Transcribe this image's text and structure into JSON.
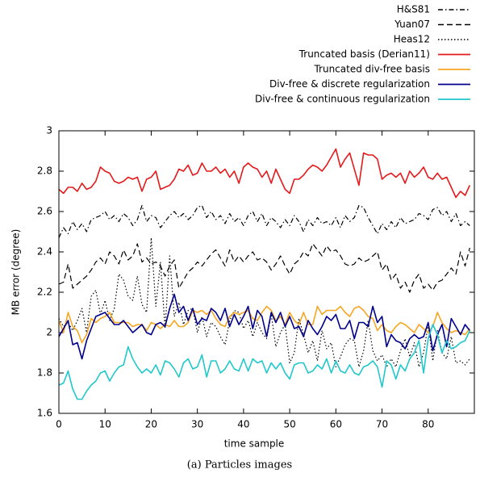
{
  "chart_data": {
    "type": "line",
    "xlabel": "time sample",
    "ylabel": "MB error (degree)",
    "caption": "(a) Particles images",
    "xlim": [
      0,
      90
    ],
    "ylim": [
      1.6,
      3
    ],
    "xticks": [
      0,
      10,
      20,
      30,
      40,
      50,
      60,
      70,
      80
    ],
    "yticks": [
      1.6,
      1.8,
      2,
      2.2,
      2.4,
      2.6,
      2.8,
      3
    ],
    "legend": "top-right",
    "x": [
      0,
      1,
      2,
      3,
      4,
      5,
      6,
      7,
      8,
      9,
      10,
      11,
      12,
      13,
      14,
      15,
      16,
      17,
      18,
      19,
      20,
      21,
      22,
      23,
      24,
      25,
      26,
      27,
      28,
      29,
      30,
      31,
      32,
      33,
      34,
      35,
      36,
      37,
      38,
      39,
      40,
      41,
      42,
      43,
      44,
      45,
      46,
      47,
      48,
      49,
      50,
      51,
      52,
      53,
      54,
      55,
      56,
      57,
      58,
      59,
      60,
      61,
      62,
      63,
      64,
      65,
      66,
      67,
      68,
      69,
      70,
      71,
      72,
      73,
      74,
      75,
      76,
      77,
      78,
      79,
      80,
      81,
      82,
      83,
      84,
      85,
      86,
      87,
      88,
      89
    ],
    "series": [
      {
        "name": "H&S81",
        "color": "#000000",
        "dash": "dash-dot",
        "values": [
          2.47,
          2.52,
          2.49,
          2.55,
          2.51,
          2.54,
          2.5,
          2.56,
          2.57,
          2.58,
          2.6,
          2.56,
          2.58,
          2.55,
          2.59,
          2.57,
          2.53,
          2.56,
          2.63,
          2.55,
          2.58,
          2.57,
          2.52,
          2.55,
          2.58,
          2.6,
          2.57,
          2.59,
          2.56,
          2.58,
          2.62,
          2.63,
          2.57,
          2.6,
          2.56,
          2.58,
          2.54,
          2.59,
          2.55,
          2.57,
          2.53,
          2.58,
          2.6,
          2.55,
          2.59,
          2.53,
          2.57,
          2.55,
          2.52,
          2.56,
          2.53,
          2.58,
          2.55,
          2.5,
          2.56,
          2.53,
          2.57,
          2.54,
          2.55,
          2.53,
          2.57,
          2.52,
          2.58,
          2.55,
          2.57,
          2.63,
          2.62,
          2.57,
          2.53,
          2.49,
          2.54,
          2.51,
          2.55,
          2.52,
          2.57,
          2.54,
          2.55,
          2.56,
          2.59,
          2.58,
          2.56,
          2.61,
          2.62,
          2.58,
          2.6,
          2.55,
          2.59,
          2.53,
          2.55,
          2.53
        ]
      },
      {
        "name": "Yuan07",
        "color": "#000000",
        "dash": "dashed",
        "values": [
          2.24,
          2.25,
          2.34,
          2.22,
          2.24,
          2.26,
          2.28,
          2.31,
          2.35,
          2.37,
          2.34,
          2.4,
          2.38,
          2.34,
          2.41,
          2.36,
          2.38,
          2.44,
          2.35,
          2.37,
          2.34,
          2.35,
          2.33,
          2.28,
          2.33,
          2.36,
          2.22,
          2.26,
          2.3,
          2.32,
          2.35,
          2.33,
          2.36,
          2.39,
          2.41,
          2.37,
          2.33,
          2.41,
          2.35,
          2.38,
          2.35,
          2.38,
          2.4,
          2.36,
          2.37,
          2.35,
          2.31,
          2.34,
          2.38,
          2.33,
          2.29,
          2.34,
          2.36,
          2.4,
          2.38,
          2.44,
          2.41,
          2.38,
          2.43,
          2.4,
          2.41,
          2.38,
          2.34,
          2.33,
          2.34,
          2.37,
          2.35,
          2.36,
          2.38,
          2.4,
          2.31,
          2.34,
          2.26,
          2.29,
          2.22,
          2.25,
          2.2,
          2.26,
          2.29,
          2.22,
          2.24,
          2.21,
          2.25,
          2.26,
          2.29,
          2.32,
          2.29,
          2.4,
          2.33,
          2.42
        ]
      },
      {
        "name": "Heas12",
        "color": "#000000",
        "dash": "dotted",
        "values": [
          2.07,
          2.03,
          2.05,
          2.01,
          2.06,
          2.12,
          2.0,
          2.18,
          2.21,
          2.09,
          2.16,
          2.06,
          2.12,
          2.29,
          2.26,
          2.18,
          2.16,
          2.28,
          2.14,
          2.1,
          2.47,
          2.13,
          2.35,
          2.02,
          2.38,
          2.08,
          2.15,
          2.04,
          2.11,
          2.12,
          2.0,
          2.08,
          1.98,
          2.05,
          2.03,
          1.98,
          1.94,
          2.06,
          2.11,
          2.1,
          2.02,
          2.06,
          1.98,
          2.05,
          2.0,
          1.97,
          2.09,
          1.93,
          2.0,
          2.04,
          1.85,
          1.9,
          2.07,
          1.99,
          1.9,
          1.96,
          1.86,
          2.01,
          1.92,
          1.95,
          1.83,
          1.88,
          1.94,
          1.97,
          1.96,
          1.83,
          1.91,
          2.06,
          1.91,
          1.86,
          1.89,
          1.83,
          1.87,
          1.83,
          1.91,
          1.97,
          1.88,
          1.95,
          1.83,
          1.9,
          2.04,
          1.86,
          2.01,
          1.9,
          1.87,
          1.98,
          1.85,
          1.86,
          1.84,
          1.87
        ]
      },
      {
        "name": "Truncated basis (Derian11)",
        "color": "#e41a1c",
        "dash": "solid",
        "values": [
          2.71,
          2.69,
          2.72,
          2.72,
          2.7,
          2.74,
          2.71,
          2.72,
          2.75,
          2.82,
          2.8,
          2.79,
          2.75,
          2.74,
          2.75,
          2.77,
          2.76,
          2.77,
          2.7,
          2.76,
          2.77,
          2.8,
          2.71,
          2.72,
          2.73,
          2.76,
          2.81,
          2.8,
          2.83,
          2.78,
          2.79,
          2.84,
          2.8,
          2.8,
          2.82,
          2.79,
          2.81,
          2.77,
          2.8,
          2.74,
          2.82,
          2.84,
          2.82,
          2.81,
          2.77,
          2.8,
          2.74,
          2.81,
          2.76,
          2.71,
          2.69,
          2.76,
          2.76,
          2.78,
          2.81,
          2.83,
          2.82,
          2.8,
          2.83,
          2.87,
          2.91,
          2.82,
          2.86,
          2.89,
          2.81,
          2.73,
          2.89,
          2.88,
          2.88,
          2.86,
          2.76,
          2.78,
          2.79,
          2.77,
          2.79,
          2.74,
          2.8,
          2.77,
          2.79,
          2.82,
          2.77,
          2.76,
          2.79,
          2.76,
          2.77,
          2.72,
          2.67,
          2.7,
          2.68,
          2.73
        ]
      },
      {
        "name": "Truncated div-free basis",
        "color": "#f5a623",
        "dash": "solid",
        "values": [
          2.06,
          2.0,
          2.1,
          2.03,
          2.01,
          1.95,
          1.99,
          2.07,
          2.05,
          2.07,
          2.08,
          2.1,
          2.05,
          2.05,
          2.05,
          2.05,
          2.03,
          2.04,
          2.04,
          2.01,
          2.05,
          2.04,
          2.02,
          2.04,
          2.03,
          2.06,
          2.03,
          2.03,
          2.05,
          2.11,
          2.1,
          2.11,
          2.09,
          2.11,
          2.07,
          2.04,
          2.03,
          2.08,
          2.1,
          2.09,
          2.1,
          2.11,
          2.07,
          2.06,
          2.1,
          2.13,
          2.11,
          2.06,
          2.08,
          2.04,
          2.1,
          2.06,
          2.04,
          2.1,
          2.04,
          2.04,
          2.13,
          2.09,
          2.11,
          2.11,
          2.11,
          2.13,
          2.1,
          2.08,
          2.12,
          2.13,
          2.11,
          2.08,
          2.07,
          2.01,
          2.04,
          2.01,
          2.0,
          2.03,
          2.05,
          2.04,
          2.02,
          2.0,
          2.04,
          2.02,
          2.0,
          2.03,
          2.1,
          2.05,
          2.02,
          2.0,
          2.01,
          2.0,
          1.99,
          2.02
        ]
      },
      {
        "name": "Div-free & discrete regularization",
        "color": "#00008b",
        "dash": "solid",
        "values": [
          1.98,
          2.02,
          2.06,
          1.94,
          1.95,
          1.87,
          1.96,
          2.02,
          2.08,
          2.09,
          2.1,
          2.07,
          2.04,
          2.04,
          2.06,
          2.03,
          2.0,
          2.02,
          2.04,
          2.0,
          1.99,
          2.04,
          2.05,
          2.03,
          2.12,
          2.19,
          2.1,
          2.13,
          2.06,
          2.12,
          2.04,
          2.07,
          2.06,
          2.12,
          2.1,
          2.06,
          2.12,
          2.03,
          2.09,
          2.04,
          2.08,
          2.13,
          2.02,
          2.11,
          2.08,
          1.98,
          2.1,
          2.05,
          2.1,
          2.03,
          2.08,
          2.02,
          2.03,
          1.98,
          2.06,
          2.02,
          1.99,
          2.03,
          2.08,
          2.06,
          2.09,
          2.02,
          2.02,
          2.06,
          1.97,
          2.05,
          2.05,
          2.03,
          2.13,
          2.05,
          2.08,
          1.93,
          1.99,
          1.96,
          1.95,
          1.92,
          1.97,
          1.99,
          1.97,
          1.98,
          2.05,
          1.91,
          1.99,
          2.04,
          1.93,
          2.07,
          2.03,
          1.99,
          2.04,
          2.01
        ]
      },
      {
        "name": "Div-free & continuous regularization",
        "color": "#20c8cc",
        "dash": "solid",
        "values": [
          1.74,
          1.75,
          1.81,
          1.72,
          1.67,
          1.67,
          1.71,
          1.74,
          1.76,
          1.8,
          1.81,
          1.76,
          1.8,
          1.83,
          1.84,
          1.93,
          1.87,
          1.83,
          1.8,
          1.82,
          1.8,
          1.84,
          1.79,
          1.86,
          1.85,
          1.82,
          1.78,
          1.85,
          1.87,
          1.82,
          1.83,
          1.89,
          1.78,
          1.86,
          1.86,
          1.8,
          1.82,
          1.86,
          1.82,
          1.81,
          1.87,
          1.81,
          1.87,
          1.85,
          1.86,
          1.8,
          1.85,
          1.82,
          1.85,
          1.8,
          1.77,
          1.84,
          1.85,
          1.85,
          1.8,
          1.81,
          1.84,
          1.82,
          1.87,
          1.8,
          1.86,
          1.81,
          1.8,
          1.84,
          1.8,
          1.79,
          1.83,
          1.84,
          1.86,
          1.83,
          1.73,
          1.86,
          1.84,
          1.77,
          1.84,
          1.81,
          1.87,
          1.9,
          1.96,
          1.8,
          1.97,
          2.04,
          1.99,
          1.9,
          1.96,
          1.92,
          1.93,
          1.95,
          1.96,
          2.01
        ]
      }
    ]
  }
}
